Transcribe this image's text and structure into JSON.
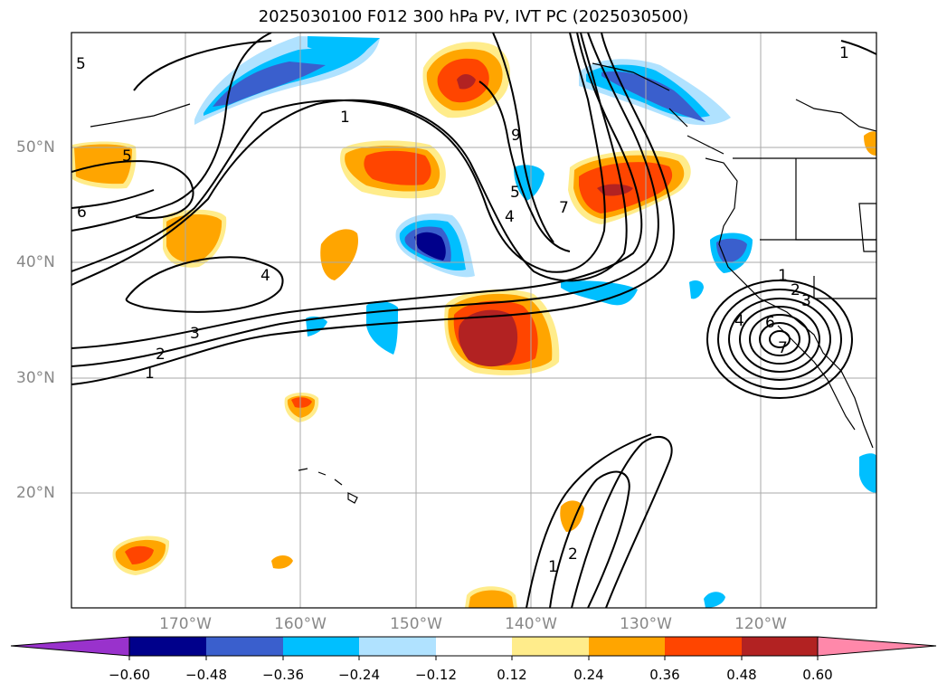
{
  "title": "2025030100 F012 300 hPa PV, IVT PC (2025030500)",
  "map": {
    "lon_labels": [
      "170°W",
      "160°W",
      "150°W",
      "140°W",
      "130°W",
      "120°W"
    ],
    "lat_labels": [
      "50°N",
      "40°N",
      "30°N",
      "20°N"
    ],
    "contour_labels": [
      "5",
      "6",
      "1",
      "4",
      "3",
      "2",
      "1",
      "5",
      "4",
      "9",
      "7",
      "1",
      "2",
      "3",
      "4",
      "6",
      "7",
      "5",
      "1",
      "2",
      "1"
    ]
  },
  "colorbar": {
    "tick_labels": [
      "−0.60",
      "−0.48",
      "−0.36",
      "−0.24",
      "−0.12",
      "0.12",
      "0.24",
      "0.36",
      "0.48",
      "0.60"
    ],
    "colors": [
      "#9932CC",
      "#00008B",
      "#3A5FCD",
      "#00BFFF",
      "#B0E2FF",
      "#FFFFFF",
      "#FFEC8B",
      "#FFA500",
      "#FF4500",
      "#B22222",
      "#FF88AA"
    ]
  }
}
